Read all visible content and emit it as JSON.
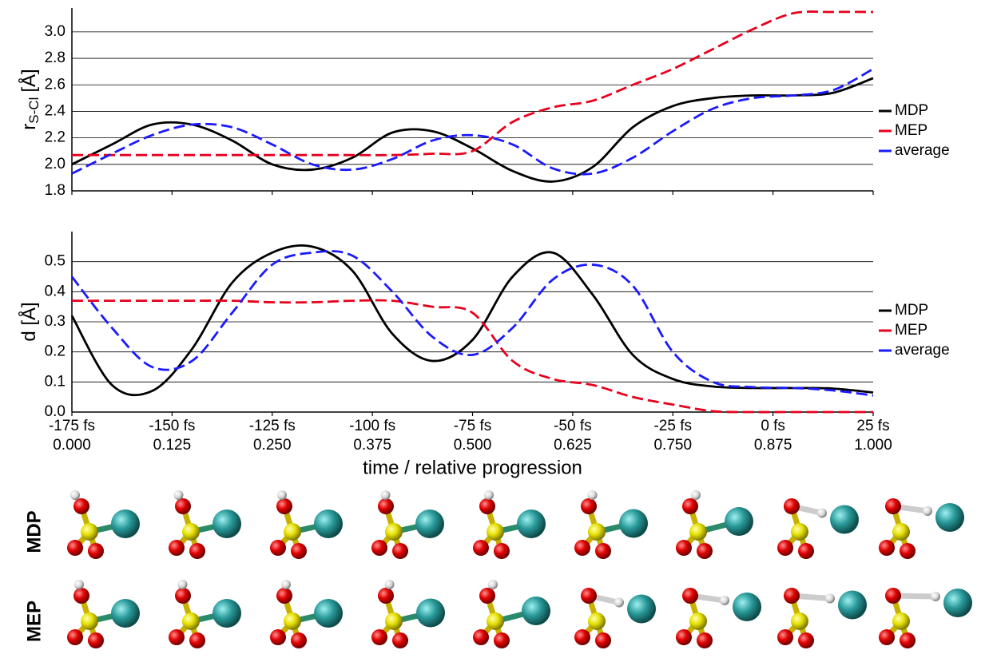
{
  "chart_data": [
    {
      "type": "line",
      "ylabel": {
        "text": "r",
        "sub": "S-Cl",
        "unit": "[Å]"
      },
      "x": [
        0,
        0.05,
        0.1,
        0.15,
        0.2,
        0.25,
        0.3,
        0.35,
        0.4,
        0.45,
        0.5,
        0.55,
        0.6,
        0.65,
        0.7,
        0.75,
        0.8,
        0.85,
        0.9,
        0.95,
        1
      ],
      "xlim": [
        0,
        1
      ],
      "ylim": [
        1.8,
        3.18
      ],
      "yticks": [
        1.8,
        {
          "value": 2,
          "label": "2.0"
        },
        2.2,
        2.4,
        2.6,
        2.8,
        {
          "value": 3,
          "label": "3.0"
        }
      ],
      "grid": true,
      "legend": "right",
      "series": [
        {
          "name": "MDP",
          "color": "#000000",
          "style": "solid",
          "values": [
            2.0,
            2.15,
            2.3,
            2.3,
            2.18,
            2.0,
            1.96,
            2.05,
            2.24,
            2.25,
            2.12,
            1.95,
            1.87,
            1.98,
            2.28,
            2.44,
            2.5,
            2.52,
            2.52,
            2.54,
            2.65
          ]
        },
        {
          "name": "MEP",
          "color": "#e8001c",
          "style": "dashed",
          "values": [
            2.07,
            2.07,
            2.07,
            2.07,
            2.07,
            2.07,
            2.07,
            2.07,
            2.07,
            2.08,
            2.1,
            2.32,
            2.43,
            2.48,
            2.6,
            2.72,
            2.87,
            3.02,
            3.14,
            3.15,
            3.15
          ]
        },
        {
          "name": "average",
          "color": "#1a1aff",
          "style": "dashed",
          "values": [
            1.93,
            2.08,
            2.22,
            2.3,
            2.28,
            2.15,
            2.0,
            1.96,
            2.04,
            2.18,
            2.22,
            2.15,
            1.97,
            1.93,
            2.05,
            2.25,
            2.42,
            2.5,
            2.52,
            2.56,
            2.72
          ]
        }
      ]
    },
    {
      "type": "line",
      "ylabel": {
        "text": "d [Å]"
      },
      "xlabel": "time / relative progression",
      "x": [
        0,
        0.05,
        0.1,
        0.15,
        0.2,
        0.25,
        0.3,
        0.35,
        0.4,
        0.45,
        0.5,
        0.55,
        0.6,
        0.65,
        0.7,
        0.75,
        0.8,
        0.85,
        0.9,
        0.95,
        1
      ],
      "xlim": [
        0,
        1
      ],
      "xticks": [
        {
          "value": 0,
          "label": "0.000"
        },
        0.125,
        {
          "value": 0.25,
          "label": "0.250"
        },
        0.375,
        {
          "value": 0.5,
          "label": "0.500"
        },
        0.625,
        {
          "value": 0.75,
          "label": "0.750"
        },
        0.875,
        {
          "value": 1,
          "label": "1.000"
        }
      ],
      "xticks_time": [
        {
          "value": 0,
          "label": "-175 fs"
        },
        {
          "value": 0.125,
          "label": "-150 fs"
        },
        {
          "value": 0.25,
          "label": "-125 fs"
        },
        {
          "value": 0.375,
          "label": "-100 fs"
        },
        {
          "value": 0.5,
          "label": "-75 fs"
        },
        {
          "value": 0.625,
          "label": "-50 fs"
        },
        {
          "value": 0.75,
          "label": "-25 fs"
        },
        {
          "value": 0.875,
          "label": "0 fs"
        },
        {
          "value": 1,
          "label": "25 fs"
        }
      ],
      "ylim": [
        0,
        0.6
      ],
      "yticks": [
        {
          "value": 0,
          "label": "0.0"
        },
        0.1,
        0.2,
        0.3,
        0.4,
        0.5
      ],
      "grid": true,
      "legend": "right",
      "series": [
        {
          "name": "MDP",
          "color": "#000000",
          "style": "solid",
          "values": [
            0.32,
            0.09,
            0.07,
            0.21,
            0.43,
            0.53,
            0.55,
            0.47,
            0.26,
            0.17,
            0.24,
            0.45,
            0.53,
            0.39,
            0.19,
            0.11,
            0.085,
            0.08,
            0.08,
            0.078,
            0.065
          ]
        },
        {
          "name": "MEP",
          "color": "#e8001c",
          "style": "dashed",
          "values": [
            0.37,
            0.37,
            0.37,
            0.37,
            0.37,
            0.365,
            0.365,
            0.37,
            0.37,
            0.35,
            0.33,
            0.17,
            0.11,
            0.09,
            0.05,
            0.025,
            0.003,
            0,
            0,
            0,
            0
          ]
        },
        {
          "name": "average",
          "color": "#1a1aff",
          "style": "dashed",
          "values": [
            0.45,
            0.28,
            0.15,
            0.17,
            0.33,
            0.49,
            0.53,
            0.52,
            0.4,
            0.25,
            0.19,
            0.28,
            0.44,
            0.49,
            0.42,
            0.2,
            0.1,
            0.083,
            0.08,
            0.072,
            0.055
          ]
        }
      ]
    }
  ],
  "structures": {
    "rows": [
      {
        "label": "MDP",
        "color": "#000000"
      },
      {
        "label": "MEP",
        "color": "#e8001c"
      }
    ]
  }
}
